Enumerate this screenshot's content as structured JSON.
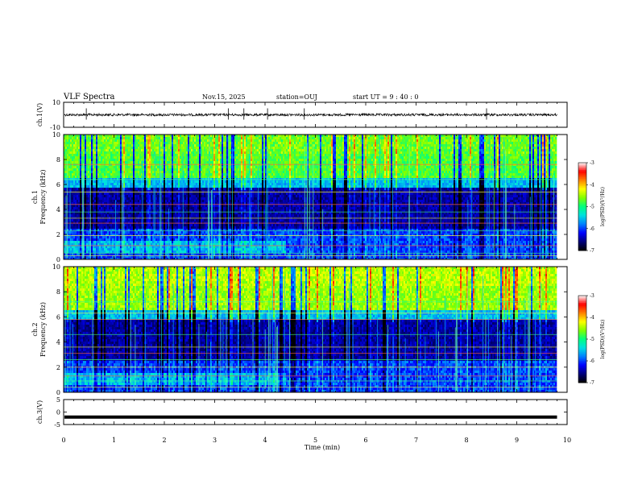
{
  "header": {
    "title": "VLF Spectra",
    "date": "Nov.15, 2025",
    "station": "station=OUJ",
    "start": "start  UT =   9 : 40 : 0"
  },
  "chart_data": [
    {
      "type": "line",
      "name": "ch1-waveform",
      "ylabel": "ch.1(V)",
      "ylim": [
        -10,
        10
      ],
      "yticks": [
        "10",
        "-10"
      ],
      "baseline": 0,
      "noise_amplitude": 1
    },
    {
      "type": "heatmap",
      "name": "ch1-spectrogram",
      "ylabel_line1": "ch.1",
      "ylabel_line2": "Frequency (kHz)",
      "ylim": [
        0,
        10
      ],
      "yticks": [
        "0",
        "2",
        "4",
        "6",
        "8",
        "10"
      ],
      "colorbar": {
        "label": "log(PSD)(V²/Hz)",
        "ticks": [
          "-3",
          "-4",
          "-5",
          "-6",
          "-7"
        ],
        "range": [
          -7,
          -3
        ]
      }
    },
    {
      "type": "heatmap",
      "name": "ch2-spectrogram",
      "ylabel_line1": "ch.2",
      "ylabel_line2": "Frequency (kHz)",
      "ylim": [
        0,
        10
      ],
      "yticks": [
        "0",
        "2",
        "4",
        "6",
        "8",
        "10"
      ],
      "colorbar": {
        "label": "log(PSD)(V²/Hz)",
        "ticks": [
          "-3",
          "-4",
          "-5",
          "-6",
          "-7"
        ],
        "range": [
          -7,
          -3
        ]
      }
    },
    {
      "type": "line",
      "name": "ch3-waveform",
      "ylabel": "ch.3(V)",
      "ylim": [
        -5,
        5
      ],
      "yticks": [
        "5",
        "0",
        "-5"
      ],
      "baseline": -2
    }
  ],
  "xaxis": {
    "label": "Time (min)",
    "xlim": [
      0,
      10
    ],
    "ticks": [
      "0",
      "1",
      "2",
      "3",
      "4",
      "5",
      "6",
      "7",
      "8",
      "9",
      "10"
    ],
    "data_end": 9.8
  },
  "colors": {
    "colormap": [
      "#000000",
      "#00007a",
      "#0000ff",
      "#0080ff",
      "#00e0e0",
      "#00ff80",
      "#80ff00",
      "#ffff00",
      "#ff8000",
      "#ff0000",
      "#ffffff"
    ]
  }
}
